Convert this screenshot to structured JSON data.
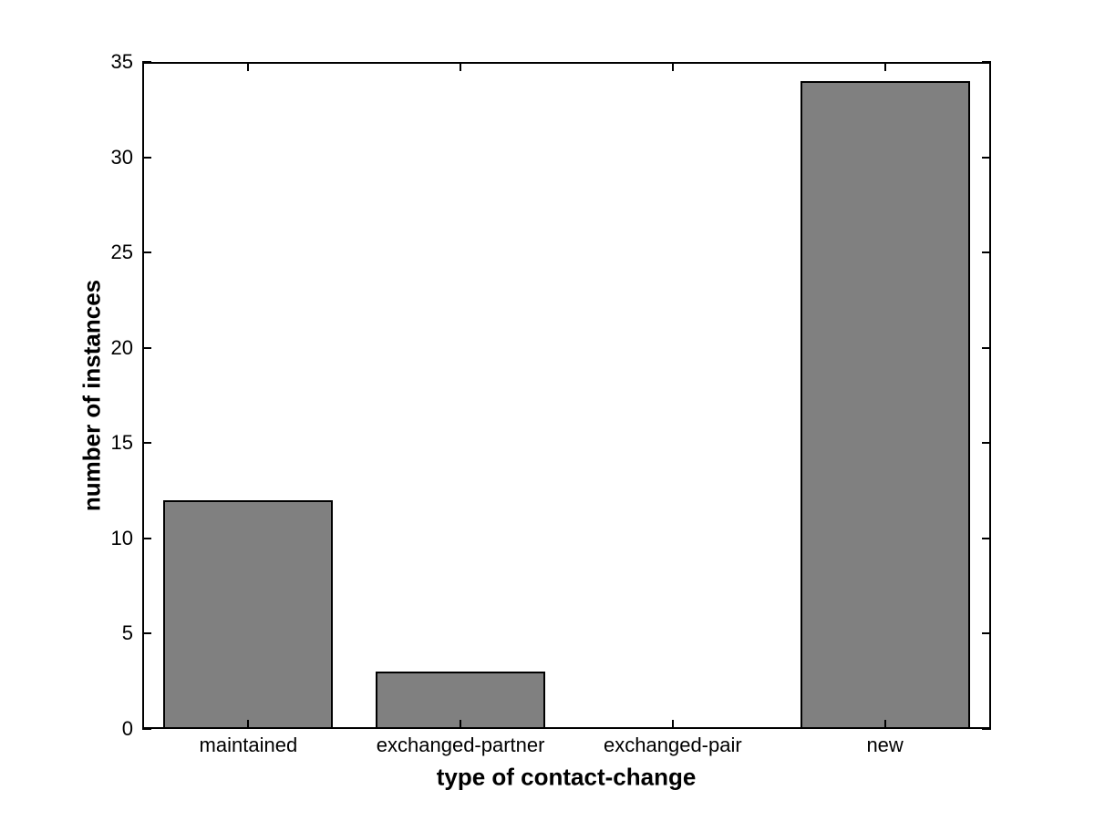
{
  "chart_data": {
    "type": "bar",
    "categories": [
      "maintained",
      "exchanged-partner",
      "exchanged-pair",
      "new"
    ],
    "values": [
      12,
      3,
      0,
      34
    ],
    "title": "",
    "xlabel": "type of contact-change",
    "ylabel": "number of instances",
    "ylim": [
      0,
      35
    ],
    "yticks": [
      0,
      5,
      10,
      15,
      20,
      25,
      30,
      35
    ],
    "grid": false,
    "legend": null,
    "bar_width_fraction": 0.8,
    "colors": {
      "bar_fill": "#808080",
      "bar_edge": "#000000",
      "axis": "#000000",
      "background": "#ffffff",
      "text": "#000000"
    }
  }
}
